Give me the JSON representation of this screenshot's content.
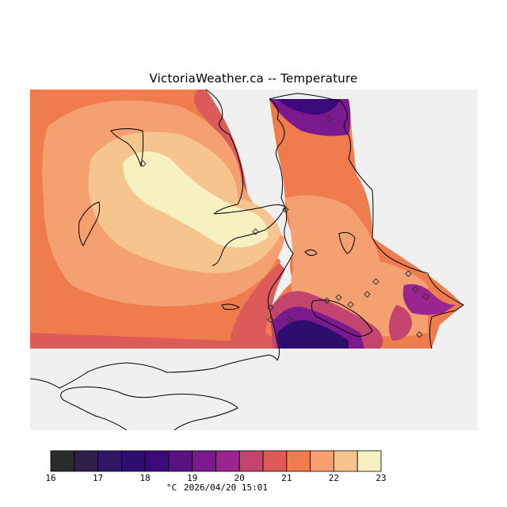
{
  "title": "VictoriaWeather.ca -- Temperature",
  "legend": {
    "ticks": [
      "16",
      "17",
      "18",
      "19",
      "20",
      "21",
      "22",
      "23"
    ],
    "colors": [
      "#2b2b2b",
      "#2f1f4a",
      "#311665",
      "#2d0e6e",
      "#3b0a78",
      "#5a1283",
      "#7b1a8f",
      "#9b2590",
      "#c2446f",
      "#dc5b59",
      "#f07c4e",
      "#f4a070",
      "#f5c48f",
      "#f7f0c0"
    ],
    "unit": "°C",
    "timestamp": "2026/04/20 15:01"
  },
  "map": {
    "land_color": "#f0f0f0",
    "coast_color": "#000000",
    "station_marker": "diamond-icon"
  }
}
